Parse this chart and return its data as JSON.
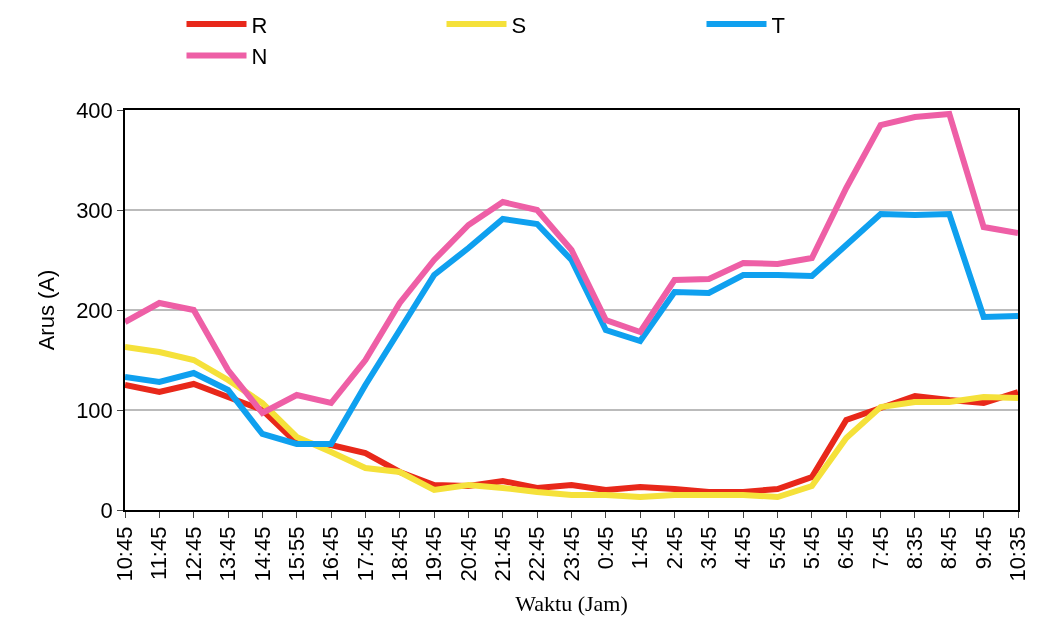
{
  "chart_data": {
    "type": "line",
    "xlabel": "Waktu (Jam)",
    "ylabel": "Arus (A)",
    "categories": [
      "10:45",
      "11:45",
      "12:45",
      "13:45",
      "14:45",
      "15:55",
      "16:45",
      "17:45",
      "18:45",
      "19:45",
      "20:45",
      "21:45",
      "22:45",
      "23:45",
      "0:45",
      "1:45",
      "2:45",
      "3:45",
      "4:45",
      "5:45",
      "5:45",
      "6:45",
      "7:45",
      "8:35",
      "8:45",
      "9:45",
      "10:35"
    ],
    "series": [
      {
        "name": "R",
        "color": "#e8281a",
        "values": [
          125,
          118,
          126,
          113,
          100,
          67,
          65,
          57,
          38,
          25,
          24,
          29,
          22,
          25,
          20,
          23,
          21,
          18,
          18,
          21,
          33,
          90,
          102,
          114,
          110,
          107,
          118
        ]
      },
      {
        "name": "S",
        "color": "#f5e13a",
        "values": [
          163,
          158,
          150,
          130,
          107,
          73,
          58,
          42,
          38,
          20,
          25,
          22,
          18,
          15,
          15,
          13,
          15,
          15,
          15,
          13,
          24,
          72,
          103,
          108,
          108,
          113,
          112
        ]
      },
      {
        "name": "T",
        "color": "#0fa0ef",
        "values": [
          133,
          128,
          137,
          120,
          76,
          66,
          66,
          125,
          180,
          235,
          262,
          291,
          286,
          250,
          180,
          169,
          218,
          217,
          235,
          235,
          234,
          265,
          296,
          295,
          296,
          193,
          194
        ]
      },
      {
        "name": "N",
        "color": "#ee5fa6",
        "values": [
          188,
          207,
          200,
          140,
          97,
          115,
          107,
          150,
          207,
          250,
          285,
          308,
          300,
          260,
          190,
          178,
          230,
          231,
          247,
          246,
          252,
          322,
          385,
          393,
          396,
          283,
          277
        ]
      }
    ],
    "ylim": [
      0,
      400
    ],
    "yticks": [
      0,
      100,
      200,
      300,
      400
    ],
    "grid": "y",
    "legend": "top",
    "marker": "none",
    "line_style": "solid"
  }
}
